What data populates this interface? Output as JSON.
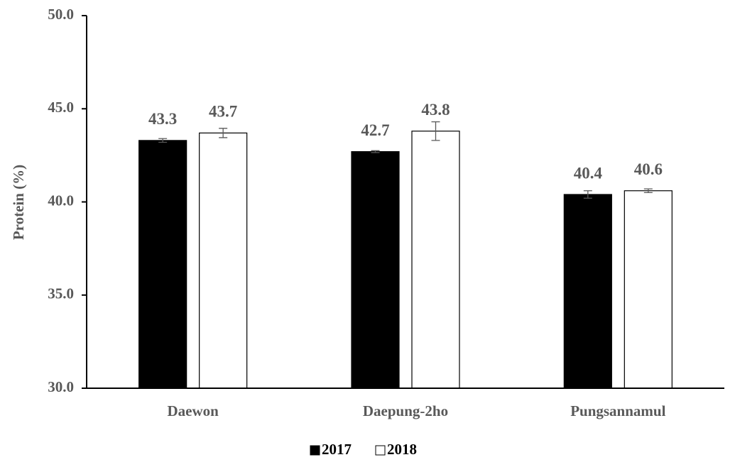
{
  "chart_data": {
    "type": "bar",
    "y_label": "Protein (%)",
    "categories": [
      "Daewon",
      "Daepung-2ho",
      "Pungsannamul"
    ],
    "series": [
      {
        "name": "2017",
        "color": "#000000",
        "values": [
          43.3,
          42.7,
          40.4
        ],
        "errors": [
          0.1,
          0.05,
          0.2
        ]
      },
      {
        "name": "2018",
        "color": "#ffffff",
        "values": [
          43.7,
          43.8,
          40.6
        ],
        "errors": [
          0.25,
          0.5,
          0.1
        ]
      }
    ],
    "ylim": [
      30,
      50
    ],
    "yticks": [
      {
        "value": 30,
        "label": "30.0"
      },
      {
        "value": 35,
        "label": "35.0"
      },
      {
        "value": 40,
        "label": "40.0"
      },
      {
        "value": 45,
        "label": "45.0"
      },
      {
        "value": 50,
        "label": "50.0"
      }
    ],
    "legend": "bottom"
  }
}
